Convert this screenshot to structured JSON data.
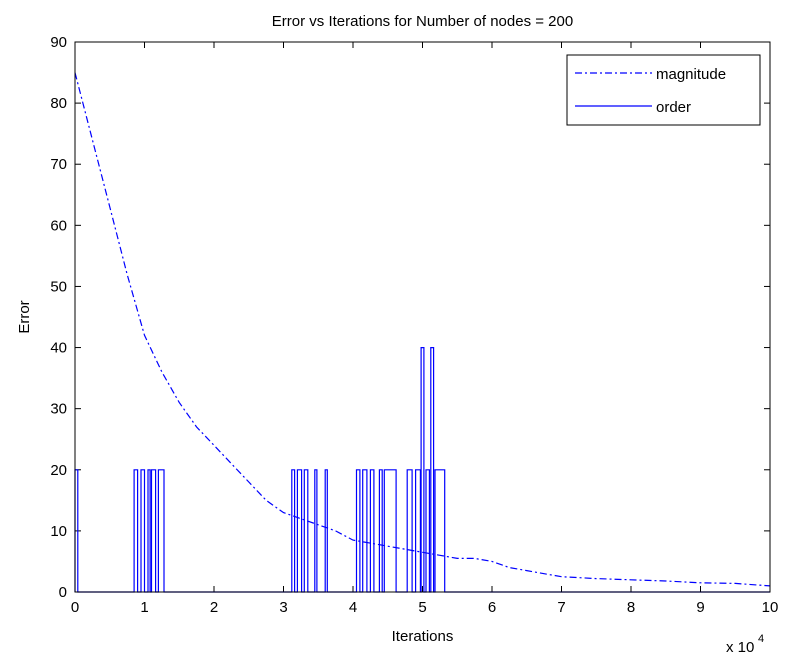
{
  "chart_data": {
    "type": "line",
    "title": "Error vs Iterations for Number of nodes = 200",
    "xlabel": "Iterations",
    "ylabel": "Error",
    "x_exponent_label": "x 10",
    "x_exponent_power": "4",
    "xlim": [
      0,
      10
    ],
    "ylim": [
      0,
      90
    ],
    "x_ticks": [
      0,
      1,
      2,
      3,
      4,
      5,
      6,
      7,
      8,
      9,
      10
    ],
    "y_ticks": [
      0,
      10,
      20,
      30,
      40,
      50,
      60,
      70,
      80,
      90
    ],
    "grid": false,
    "legend_position": "top-right",
    "series": [
      {
        "name": "magnitude",
        "style": "dash-dot",
        "color": "#0000ff",
        "x": [
          0,
          0.25,
          0.5,
          0.75,
          1,
          1.25,
          1.5,
          1.75,
          2,
          2.25,
          2.5,
          2.75,
          3,
          3.25,
          3.5,
          3.75,
          4,
          4.25,
          4.5,
          4.75,
          5,
          5.25,
          5.5,
          5.75,
          6,
          6.25,
          6.5,
          6.75,
          7,
          7.5,
          8,
          8.5,
          9,
          9.5,
          10
        ],
        "y": [
          85,
          74,
          63,
          52,
          42,
          36,
          31,
          27,
          24,
          21,
          18,
          15,
          13,
          12,
          11,
          10,
          8.5,
          8,
          7.5,
          7,
          6.5,
          6,
          5.5,
          5.5,
          5,
          4,
          3.5,
          3,
          2.5,
          2.2,
          2,
          1.8,
          1.5,
          1.4,
          1
        ]
      },
      {
        "name": "order",
        "style": "solid",
        "color": "#0000ff",
        "pulses": [
          {
            "start": 0.0,
            "end": 0.04,
            "value": 20
          },
          {
            "start": 0.85,
            "end": 0.9,
            "value": 20
          },
          {
            "start": 0.95,
            "end": 1.0,
            "value": 20
          },
          {
            "start": 1.05,
            "end": 1.08,
            "value": 20
          },
          {
            "start": 1.1,
            "end": 1.16,
            "value": 20
          },
          {
            "start": 1.2,
            "end": 1.28,
            "value": 20
          },
          {
            "start": 3.12,
            "end": 3.16,
            "value": 20
          },
          {
            "start": 3.2,
            "end": 3.26,
            "value": 20
          },
          {
            "start": 3.3,
            "end": 3.35,
            "value": 20
          },
          {
            "start": 3.45,
            "end": 3.48,
            "value": 20
          },
          {
            "start": 3.6,
            "end": 3.63,
            "value": 20
          },
          {
            "start": 4.05,
            "end": 4.1,
            "value": 20
          },
          {
            "start": 4.14,
            "end": 4.2,
            "value": 20
          },
          {
            "start": 4.25,
            "end": 4.3,
            "value": 20
          },
          {
            "start": 4.38,
            "end": 4.42,
            "value": 20
          },
          {
            "start": 4.45,
            "end": 4.62,
            "value": 20
          },
          {
            "start": 4.78,
            "end": 4.85,
            "value": 20
          },
          {
            "start": 4.9,
            "end": 4.97,
            "value": 20
          },
          {
            "start": 4.98,
            "end": 5.02,
            "value": 40
          },
          {
            "start": 5.05,
            "end": 5.1,
            "value": 20
          },
          {
            "start": 5.12,
            "end": 5.16,
            "value": 40
          },
          {
            "start": 5.18,
            "end": 5.32,
            "value": 20
          }
        ]
      }
    ]
  }
}
